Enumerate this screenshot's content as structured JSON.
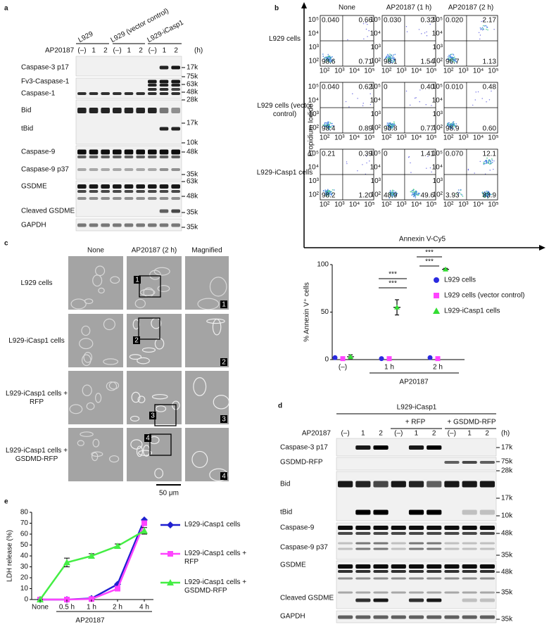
{
  "panels": {
    "a": {
      "label": "a",
      "groups": [
        "L929",
        "L929 (vector control)",
        "L929-iCasp1"
      ],
      "treatment": "AP20187",
      "lanes": [
        "(–)",
        "1",
        "2",
        "(–)",
        "1",
        "2",
        "(–)",
        "1",
        "2"
      ],
      "unit": "(h)",
      "bands": [
        "Caspase-3 p17",
        "Fv3-Caspase-1",
        "Caspase-1",
        "Bid",
        "tBid",
        "Caspase-9",
        "Caspase-9 p37",
        "GSDME",
        "Cleaved GSDME",
        "GAPDH"
      ],
      "markers": [
        "17k",
        "75k",
        "63k",
        "48k",
        "28k",
        "17k",
        "10k",
        "48k",
        "35k",
        "63k",
        "48k",
        "35k",
        "35k"
      ]
    },
    "b": {
      "label": "b",
      "columns": [
        "None",
        "AP20187 (1 h)",
        "AP20187 (2 h)"
      ],
      "rows": [
        "L929 cells",
        "L929 cells (vector control)",
        "L929-iCasp1 cells"
      ],
      "y_axis": "Propidium Iodide",
      "x_axis": "Annexin V-Cy5",
      "axis_ticks": [
        "10²",
        "10³",
        "10⁴",
        "10⁵"
      ],
      "quadrants": [
        [
          [
            "0.040",
            "0.66",
            "98.6",
            "0.71"
          ],
          [
            "0.030",
            "0.32",
            "98.1",
            "1.54"
          ],
          [
            "0.020",
            "2.17",
            "96.7",
            "1.13"
          ]
        ],
        [
          [
            "0.040",
            "0.62",
            "98.4",
            "0.89"
          ],
          [
            "0",
            "0.40",
            "98.8",
            "0.77"
          ],
          [
            "0.010",
            "0.48",
            "98.9",
            "0.60"
          ]
        ],
        [
          [
            "0.21",
            "0.39",
            "98.2",
            "1.20"
          ],
          [
            "0",
            "1.41",
            "48.9",
            "49.6"
          ],
          [
            "0.070",
            "12.1",
            "3.93",
            "83.9"
          ]
        ]
      ]
    },
    "c": {
      "label": "c",
      "columns": [
        "None",
        "AP20187 (2 h)",
        "Magnified"
      ],
      "rows": [
        "L929 cells",
        "L929-iCasp1 cells",
        "L929-iCasp1 cells + RFP",
        "L929-iCasp1 cells + GSDMD-RFP"
      ],
      "boxes": [
        "1",
        "2",
        "3",
        "4"
      ],
      "scale": "50 μm"
    },
    "d": {
      "label": "d",
      "group": "L929-iCasp1",
      "subgroups": [
        "+ RFP",
        "+ GSDMD-RFP"
      ],
      "treatment": "AP20187",
      "lanes": [
        "(–)",
        "1",
        "2",
        "(–)",
        "1",
        "2",
        "(–)",
        "1",
        "2"
      ],
      "unit": "(h)",
      "bands": [
        "Caspase-3 p17",
        "GSDMD-RFP",
        "Bid",
        "tBid",
        "Caspase-9",
        "Caspase-9 p37",
        "GSDME",
        "Cleaved GSDME",
        "GAPDH"
      ],
      "markers": [
        "17k",
        "75k",
        "28k",
        "17k",
        "10k",
        "48k",
        "35k",
        "48k",
        "35k",
        "35k"
      ]
    },
    "e": {
      "label": "e"
    }
  },
  "chart_data": [
    {
      "type": "dot",
      "y_label": "% Annexin V⁺ cells",
      "categories": [
        "(–)",
        "1 h",
        "2 h"
      ],
      "group_label": "AP20187",
      "ylim": [
        0,
        100
      ],
      "yticks": [
        0,
        50,
        100
      ],
      "series": [
        {
          "name": "L929 cells",
          "color": "#2a2ae0",
          "values": [
            2,
            1,
            2
          ]
        },
        {
          "name": "L929 cells (vector control)",
          "color": "#ff44ff",
          "values": [
            1,
            1,
            1
          ]
        },
        {
          "name": "L929-iCasp1 cells",
          "color": "#33dd33",
          "values": [
            3,
            55,
            95
          ],
          "errors": [
            2,
            8,
            1
          ]
        }
      ],
      "annotations": [
        "***",
        "***",
        "***",
        "***"
      ]
    },
    {
      "type": "line",
      "y_label": "LDH release (%)",
      "categories": [
        "None",
        "0.5 h",
        "1 h",
        "2 h",
        "4 h"
      ],
      "group_label": "AP20187",
      "ylim": [
        0,
        80
      ],
      "yticks": [
        0,
        10,
        20,
        30,
        40,
        50,
        60,
        70,
        80
      ],
      "series": [
        {
          "name": "L929-iCasp1 cells",
          "color": "#1f1fd0",
          "values": [
            0,
            0,
            1,
            14,
            73
          ]
        },
        {
          "name": "L929-iCasp1 cells + RFP",
          "color": "#ff44ff",
          "values": [
            0,
            0,
            0.5,
            10,
            70
          ]
        },
        {
          "name": "L929-iCasp1 cells + GSDMD-RFP",
          "color": "#44ee44",
          "values": [
            0,
            34,
            40,
            49,
            63
          ],
          "errors": [
            0,
            4,
            2,
            2,
            3
          ]
        }
      ]
    }
  ]
}
